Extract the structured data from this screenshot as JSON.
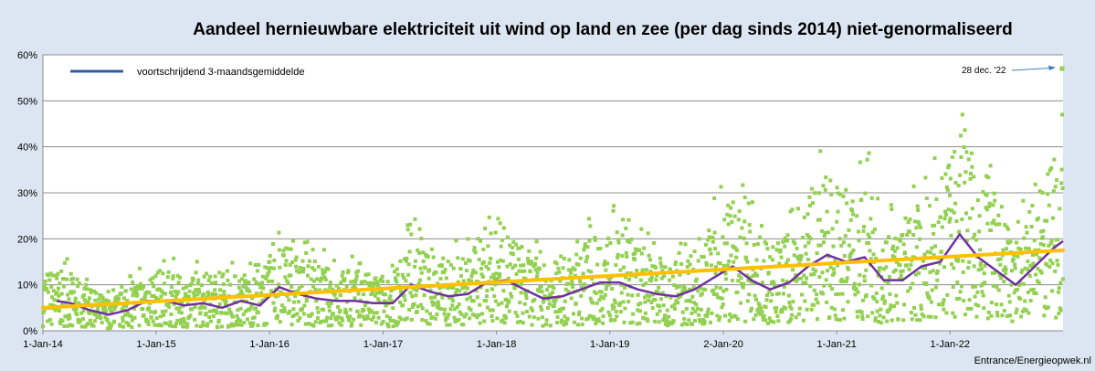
{
  "chart_data": {
    "type": "scatter",
    "title": "Aandeel hernieuwbare elektriciteit uit wind op land en zee (per dag sinds 2014)   niet-genormaliseerd",
    "xlabel": "",
    "ylabel": "",
    "x_ticks": [
      "1-Jan-14",
      "1-Jan-15",
      "1-Jan-16",
      "1-Jan-17",
      "1-Jan-18",
      "1-Jan-19",
      "2-Jan-20",
      "1-Jan-21",
      "1-Jan-22"
    ],
    "y_ticks": [
      "0%",
      "10%",
      "20%",
      "30%",
      "40%",
      "50%",
      "60%"
    ],
    "xlim": [
      "2014-01-01",
      "2022-12-31"
    ],
    "ylim": [
      0,
      60
    ],
    "grid": "horizontal",
    "legend": {
      "position": "top-left",
      "label": "voortschrijdend 3-maandsgemiddelde"
    },
    "annotation": {
      "text": "28 dec. '22",
      "x": "2022-12-28",
      "y": 57
    },
    "source_text": "Entrance/Energieopwek.nl",
    "series": [
      {
        "kind": "daily",
        "color": "#92d050",
        "note": "Dagelijkse waarden (punten)"
      },
      {
        "name": "voortschrijdend 3-maandsgemiddelde",
        "kind": "moving-average",
        "color": "#7030a0",
        "x": [
          "2014-02-15",
          "2014-04-01",
          "2014-06-01",
          "2014-08-01",
          "2014-10-01",
          "2014-12-01",
          "2015-02-01",
          "2015-04-01",
          "2015-06-01",
          "2015-08-01",
          "2015-10-01",
          "2015-12-01",
          "2016-02-01",
          "2016-04-01",
          "2016-06-01",
          "2016-08-01",
          "2016-10-01",
          "2016-12-01",
          "2017-02-01",
          "2017-04-01",
          "2017-06-01",
          "2017-08-01",
          "2017-10-01",
          "2017-12-01",
          "2018-02-01",
          "2018-04-01",
          "2018-06-01",
          "2018-08-01",
          "2018-10-01",
          "2018-12-01",
          "2019-02-01",
          "2019-04-01",
          "2019-06-01",
          "2019-08-01",
          "2019-10-01",
          "2019-12-01",
          "2020-02-01",
          "2020-04-01",
          "2020-06-01",
          "2020-08-01",
          "2020-10-01",
          "2020-12-01",
          "2021-02-01",
          "2021-04-01",
          "2021-06-01",
          "2021-08-01",
          "2021-10-01",
          "2021-12-01",
          "2022-02-01",
          "2022-04-01",
          "2022-06-01",
          "2022-08-01",
          "2022-10-01",
          "2022-12-01",
          "2022-12-31"
        ],
        "values": [
          6.5,
          6,
          4.5,
          3.5,
          4.5,
          6.5,
          6.5,
          5.5,
          6,
          5,
          6.5,
          5.5,
          9.5,
          8,
          7,
          6.5,
          6.5,
          6,
          6,
          10,
          8.5,
          7.5,
          8,
          10.5,
          11,
          9,
          7,
          7.5,
          9,
          10.5,
          10.5,
          9,
          8,
          7.5,
          9,
          11.5,
          14,
          11,
          9,
          10.5,
          14,
          16.5,
          15,
          16,
          11,
          11,
          14,
          15,
          21,
          16,
          13,
          10,
          14,
          18,
          19.5
        ]
      },
      {
        "name": "trend",
        "kind": "trendline",
        "color": "#ffc000",
        "x": [
          "2014-01-01",
          "2022-12-31"
        ],
        "values": [
          5,
          17.5
        ]
      }
    ]
  }
}
